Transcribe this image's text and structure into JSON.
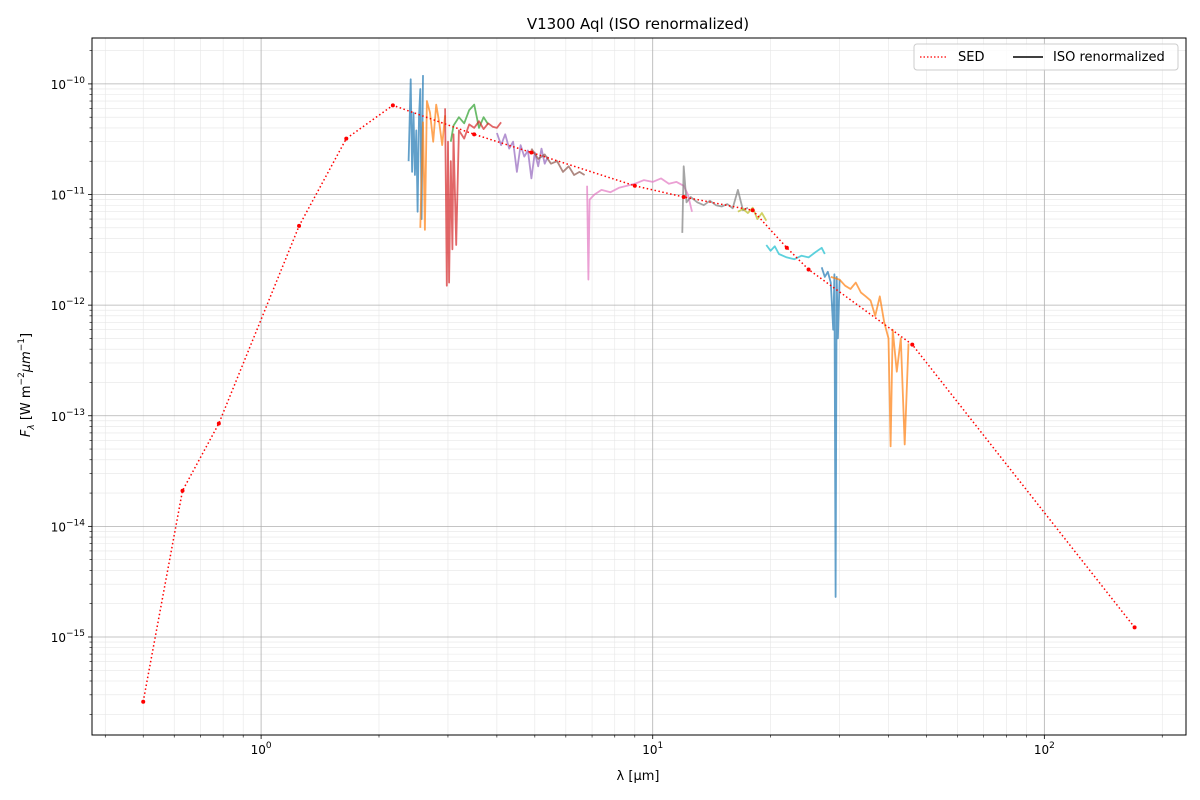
{
  "chart_data": {
    "type": "line",
    "title": "V1300 Aql (ISO renormalized)",
    "xlabel": "λ [μm]",
    "ylabel": "F_λ [W m^-2 μm^-1]",
    "xscale": "log",
    "yscale": "log",
    "xlim": [
      0.37,
      230
    ],
    "ylim": [
      1.3e-16,
      2.6e-10
    ],
    "grid": true,
    "legend_position": "top-right",
    "x_tick_labels": [
      "10^0",
      "10^1",
      "10^2"
    ],
    "y_tick_labels": [
      "10^-15",
      "10^-14",
      "10^-13",
      "10^-12",
      "10^-11",
      "10^-10"
    ],
    "legend": [
      {
        "label": "SED",
        "style": "dotted",
        "color": "#ff0000"
      },
      {
        "label": "ISO renormalized",
        "style": "solid",
        "color": "#000000"
      }
    ],
    "sed": {
      "name": "SED",
      "color": "#ff0000",
      "x": [
        0.5,
        0.63,
        0.78,
        1.25,
        1.65,
        2.17,
        3.5,
        4.9,
        9.0,
        12.0,
        18.0,
        22.0,
        25.0,
        46.0,
        170.0
      ],
      "y": [
        2.6e-16,
        2.1e-14,
        8.5e-14,
        5.2e-12,
        3.2e-11,
        6.4e-11,
        3.5e-11,
        2.4e-11,
        1.2e-11,
        9.5e-12,
        7.2e-12,
        3.3e-12,
        2.1e-12,
        4.4e-13,
        1.22e-15
      ]
    },
    "iso_segments": [
      {
        "color": "#1f77b4",
        "x": [
          2.38,
          2.41,
          2.43,
          2.45,
          2.47,
          2.49,
          2.51,
          2.53,
          2.55,
          2.57,
          2.59
        ],
        "y": [
          2e-11,
          1.1e-10,
          1.6e-11,
          5.5e-11,
          1.5e-11,
          3.8e-11,
          7e-12,
          5e-11,
          9e-11,
          6e-12,
          1.2e-10
        ]
      },
      {
        "color": "#ff7f0e",
        "x": [
          2.55,
          2.59,
          2.62,
          2.65,
          2.7,
          2.75,
          2.8,
          2.85,
          2.9,
          2.95
        ],
        "y": [
          5e-12,
          4.5e-11,
          4.8e-12,
          7e-11,
          5.5e-11,
          3e-11,
          6.5e-11,
          4.5e-11,
          2.8e-11,
          5.2e-11
        ]
      },
      {
        "color": "#2ca02c",
        "x": [
          3.05,
          3.1,
          3.2,
          3.3,
          3.4,
          3.5,
          3.6,
          3.7,
          3.8
        ],
        "y": [
          3e-11,
          4.2e-11,
          5e-11,
          4.4e-11,
          5.8e-11,
          6.5e-11,
          4e-11,
          5e-11,
          4.3e-11
        ]
      },
      {
        "color": "#d62728",
        "x": [
          2.95,
          2.98,
          3.0,
          3.02,
          3.05,
          3.08,
          3.1,
          3.15,
          3.2,
          3.3,
          3.4,
          3.5,
          3.6,
          3.7,
          3.8,
          3.9,
          4.0,
          4.1
        ],
        "y": [
          6e-11,
          1.5e-12,
          3e-11,
          1.6e-12,
          2e-11,
          3.2e-12,
          3.5e-11,
          3.5e-12,
          3.8e-11,
          3.2e-11,
          4.3e-11,
          4e-11,
          4.6e-11,
          3.9e-11,
          4.4e-11,
          4.1e-11,
          4e-11,
          4.5e-11
        ]
      },
      {
        "color": "#9467bd",
        "x": [
          4.0,
          4.1,
          4.2,
          4.3,
          4.4,
          4.5,
          4.6,
          4.7,
          4.8,
          4.9,
          5.0,
          5.1,
          5.2,
          5.3,
          5.4
        ],
        "y": [
          3.6e-11,
          2.8e-11,
          3.5e-11,
          2.6e-11,
          3e-11,
          1.6e-11,
          2.8e-11,
          2.2e-11,
          2.5e-11,
          1.4e-11,
          2.4e-11,
          1.8e-11,
          2.6e-11,
          1.9e-11,
          2.2e-11
        ]
      },
      {
        "color": "#8c564b",
        "x": [
          4.9,
          5.1,
          5.3,
          5.5,
          5.7,
          5.9,
          6.1,
          6.3,
          6.5,
          6.7
        ],
        "y": [
          2.6e-11,
          2.1e-11,
          2.3e-11,
          1.9e-11,
          2e-11,
          1.6e-11,
          1.8e-11,
          1.5e-11,
          1.6e-11,
          1.5e-11
        ]
      },
      {
        "color": "#e377c2",
        "x": [
          6.8,
          6.85,
          6.9,
          7.1,
          7.4,
          7.8,
          8.2,
          8.6,
          9.0,
          9.5,
          10.0,
          10.5,
          11.0,
          11.5,
          12.0,
          12.3,
          12.6
        ],
        "y": [
          1.2e-11,
          1.7e-12,
          9e-12,
          1e-11,
          1.1e-11,
          1.05e-11,
          1.15e-11,
          1.2e-11,
          1.25e-11,
          1.35e-11,
          1.3e-11,
          1.4e-11,
          1.25e-11,
          1.3e-11,
          1.2e-11,
          1e-11,
          7e-12
        ]
      },
      {
        "color": "#7f7f7f",
        "x": [
          11.9,
          12.0,
          12.2,
          12.5,
          13.0,
          13.5,
          14.0,
          14.5,
          15.0,
          15.5,
          16.0,
          16.5,
          17.0,
          17.5
        ],
        "y": [
          4.5e-12,
          1.8e-11,
          8.5e-12,
          9.5e-12,
          8.5e-12,
          8e-12,
          8.8e-12,
          8e-12,
          7.8e-12,
          8.2e-12,
          7.5e-12,
          1.1e-11,
          7.2e-12,
          7.6e-12
        ]
      },
      {
        "color": "#bcbd22",
        "x": [
          16.5,
          17.0,
          17.5,
          18.0,
          18.5,
          19.0,
          19.5
        ],
        "y": [
          7e-12,
          7.4e-12,
          6.8e-12,
          7.6e-12,
          6e-12,
          6.8e-12,
          5.8e-12
        ]
      },
      {
        "color": "#17becf",
        "x": [
          19.5,
          20.0,
          20.5,
          21.0,
          22.0,
          23.0,
          24.0,
          25.0,
          26.0,
          27.0,
          27.5
        ],
        "y": [
          3.5e-12,
          3.1e-12,
          3.4e-12,
          2.9e-12,
          2.7e-12,
          2.6e-12,
          2.8e-12,
          2.7e-12,
          3e-12,
          3.3e-12,
          2.9e-12
        ]
      },
      {
        "color": "#1f77b4",
        "x": [
          27.0,
          27.5,
          28.0,
          28.5,
          28.9,
          29.1,
          29.3,
          29.5,
          29.7,
          30.0
        ],
        "y": [
          2.2e-12,
          1.8e-12,
          2e-12,
          1.6e-12,
          6e-13,
          1.9e-12,
          2.3e-15,
          1.8e-12,
          5e-13,
          1.7e-12
        ]
      },
      {
        "color": "#ff7f0e",
        "x": [
          28.5,
          30.0,
          31.0,
          32.0,
          33.0,
          34.0,
          35.0,
          36.0,
          37.0,
          38.0,
          39.0,
          40.0,
          40.5,
          41.0,
          42.0,
          43.0,
          44.0,
          45.0
        ],
        "y": [
          1.8e-12,
          1.7e-12,
          1.5e-12,
          1.4e-12,
          1.6e-12,
          1.3e-12,
          1.2e-12,
          1.1e-12,
          8e-13,
          1.2e-12,
          7e-13,
          5e-13,
          5.3e-14,
          6e-13,
          2.5e-13,
          5e-13,
          5.5e-14,
          4.5e-13
        ]
      }
    ]
  }
}
